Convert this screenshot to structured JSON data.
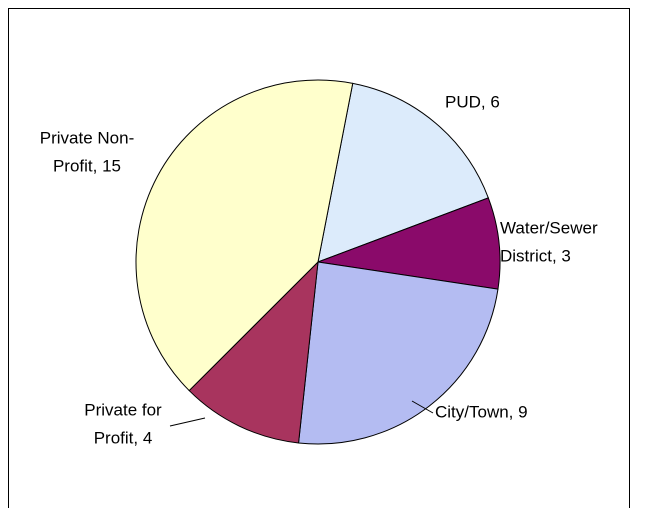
{
  "chart_data": {
    "type": "pie",
    "value_labels": [
      [
        "PUD, 6"
      ],
      [
        "Water/Sewer",
        "District, 3"
      ],
      [
        "City/Town, 9"
      ],
      [
        "Private for",
        "Profit, 4"
      ],
      [
        "Private Non-",
        "Profit, 15"
      ]
    ],
    "values": [
      6,
      3,
      9,
      4,
      15
    ],
    "colors": [
      "#dcebfb",
      "#8a0a6a",
      "#b4bcf2",
      "#a8345e",
      "#ffffcc"
    ]
  }
}
